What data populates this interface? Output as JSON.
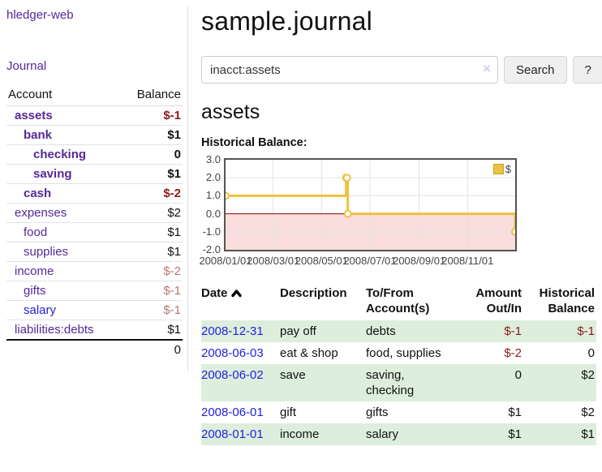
{
  "app": {
    "brand": "hledger-web",
    "nav_journal": "Journal"
  },
  "colors": {
    "link_purple": "#552999",
    "link_blue": "#2222dd",
    "negative_red": "#8b1a1a",
    "negative_soft_red": "#b97474",
    "row_stripe_green": "#ddeedd",
    "series_gold": "#edc240",
    "zero_line_red": "#8b0000",
    "negative_region_pink": "#fadddd"
  },
  "sidebar": {
    "accounts_header": {
      "account": "Account",
      "balance": "Balance"
    },
    "rows": [
      {
        "name": "assets",
        "balance": "$-1",
        "level": 0,
        "bold": true,
        "balance_style": "neg"
      },
      {
        "name": "bank",
        "balance": "$1",
        "level": 1,
        "bold": true,
        "balance_style": "pos"
      },
      {
        "name": "checking",
        "balance": "0",
        "level": 2,
        "bold": true,
        "balance_style": "pos"
      },
      {
        "name": "saving",
        "balance": "$1",
        "level": 2,
        "bold": true,
        "balance_style": "pos"
      },
      {
        "name": "cash",
        "balance": "$-2",
        "level": 1,
        "bold": true,
        "balance_style": "neg"
      },
      {
        "name": "expenses",
        "balance": "$2",
        "level": 0,
        "bold": false,
        "balance_style": "pos"
      },
      {
        "name": "food",
        "balance": "$1",
        "level": 1,
        "bold": false,
        "balance_style": "pos"
      },
      {
        "name": "supplies",
        "balance": "$1",
        "level": 1,
        "bold": false,
        "balance_style": "pos"
      },
      {
        "name": "income",
        "balance": "$-2",
        "level": 0,
        "bold": false,
        "balance_style": "negsoft"
      },
      {
        "name": "gifts",
        "balance": "$-1",
        "level": 1,
        "bold": false,
        "balance_style": "negsoft"
      },
      {
        "name": "salary",
        "balance": "$-1",
        "level": 1,
        "bold": false,
        "balance_style": "negsoft",
        "link_color": "blue"
      },
      {
        "name": "liabilities:debts",
        "balance": "$1",
        "level": 0,
        "bold": false,
        "balance_style": "pos"
      }
    ],
    "total": "0"
  },
  "main": {
    "title": "sample.journal",
    "search": {
      "value": "inacct:assets",
      "clear_icon": "×",
      "button_label": "Search",
      "help_label": "?"
    },
    "account_title": "assets",
    "chart_label": "Historical Balance:"
  },
  "chart_data": {
    "type": "line",
    "title": "Historical Balance:",
    "steps": true,
    "grid": true,
    "x_range": [
      "2008-01-01",
      "2008-12-31"
    ],
    "ylim": [
      -2,
      3
    ],
    "y_ticks": [
      3.0,
      2.0,
      1.0,
      0.0,
      -1.0,
      -2.0
    ],
    "y_tick_labels": [
      "3.0",
      "2.0",
      "1.0",
      "0.0",
      "-1.0",
      "-2.0"
    ],
    "x_tick_labels": [
      "2008/01/01",
      "2008/03/01",
      "2008/05/01",
      "2008/07/01",
      "2008/09/01",
      "2008/11/01"
    ],
    "legend": {
      "label": "$",
      "position": "top-right"
    },
    "series": [
      {
        "name": "$",
        "color": "#edc240",
        "points": [
          [
            "2008-01-01",
            1
          ],
          [
            "2008-06-01",
            2
          ],
          [
            "2008-06-02",
            2
          ],
          [
            "2008-06-03",
            0
          ],
          [
            "2008-12-31",
            -1
          ]
        ]
      }
    ],
    "negative_region_fill": "#fadddd",
    "zero_line_color": "#8b0000",
    "gridline_color": "#e3e3e3"
  },
  "register": {
    "headers": [
      "Date",
      "Description",
      "To/From Account(s)",
      "Amount Out/In",
      "Historical Balance"
    ],
    "rows": [
      {
        "date": "2008-12-31",
        "description": "pay off",
        "accounts": "debts",
        "amount": "$-1",
        "balance": "$-1",
        "amount_neg": true,
        "balance_neg": true
      },
      {
        "date": "2008-06-03",
        "description": "eat & shop",
        "accounts": "food, supplies",
        "amount": "$-2",
        "balance": "0",
        "amount_neg": true,
        "balance_neg": false
      },
      {
        "date": "2008-06-02",
        "description": "save",
        "accounts": "saving, checking",
        "amount": "0",
        "balance": "$2",
        "amount_neg": false,
        "balance_neg": false
      },
      {
        "date": "2008-06-01",
        "description": "gift",
        "accounts": "gifts",
        "amount": "$1",
        "balance": "$2",
        "amount_neg": false,
        "balance_neg": false
      },
      {
        "date": "2008-01-01",
        "description": "income",
        "accounts": "salary",
        "amount": "$1",
        "balance": "$1",
        "amount_neg": false,
        "balance_neg": false
      }
    ]
  }
}
